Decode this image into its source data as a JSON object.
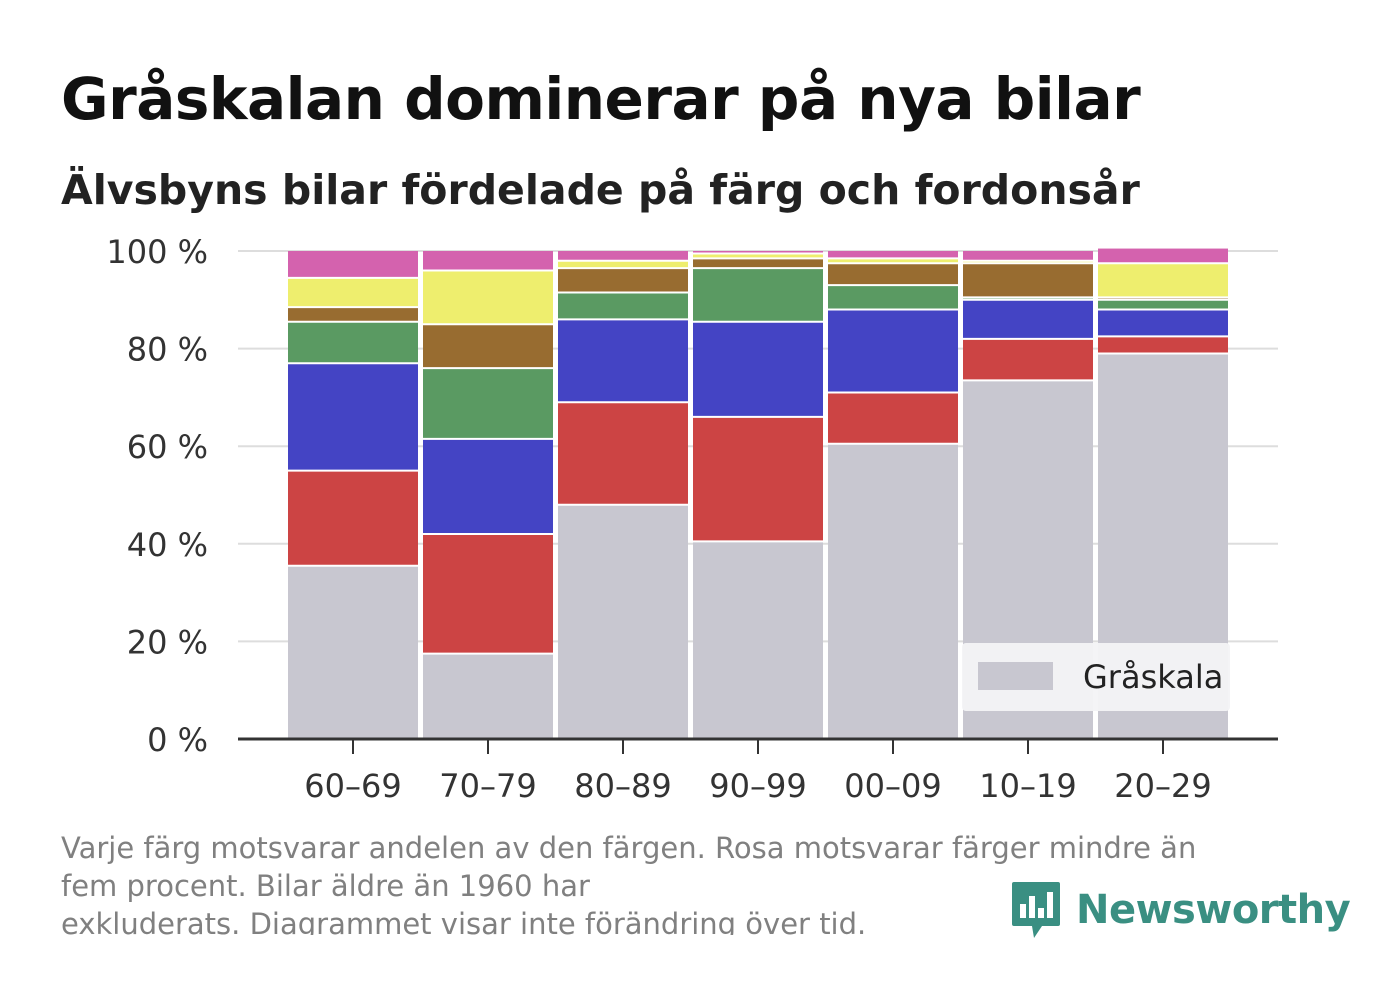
{
  "title": "Gråskalan dominerar på nya bilar",
  "subtitle": "Älvsbyns bilar fördelade på färg och fordonsår",
  "footnote": {
    "line1": "Varje färg motsvarar andelen av den färgen. Rosa motsvarar färger mindre än",
    "line2": "fem procent. Bilar äldre än 1960 har",
    "line3": "exkluderats. Diagrammet visar inte förändring över tid."
  },
  "brand": {
    "name": "Newsworthy",
    "icon": "newsworthy-logo-icon",
    "color": "#3a8f82"
  },
  "legend": {
    "label": "Gråskala",
    "color": "#c8c7d0",
    "placement": "bottom-right"
  },
  "chart_data": {
    "type": "bar",
    "stacked": true,
    "categories": [
      "60–69",
      "70–79",
      "80–89",
      "90–99",
      "00–09",
      "10–19",
      "20–29"
    ],
    "ylim": [
      0,
      100
    ],
    "yticks": [
      0,
      20,
      40,
      60,
      80,
      100
    ],
    "ytick_labels": [
      "0 %",
      "20 %",
      "40 %",
      "60 %",
      "80 %",
      "100 %"
    ],
    "grid": true,
    "series": [
      {
        "name": "Gråskala",
        "color": "#c8c7d0",
        "values": [
          35.5,
          17.5,
          48,
          40.5,
          60.5,
          73.5,
          79
        ]
      },
      {
        "color": "#cc4444",
        "values": [
          19.5,
          24.5,
          21,
          25.5,
          10.5,
          8.5,
          3.5
        ]
      },
      {
        "color": "#4444c4",
        "values": [
          22,
          19.5,
          17,
          19.5,
          17,
          8,
          5.5
        ]
      },
      {
        "color": "#5a9a62",
        "values": [
          8.5,
          14.5,
          5.5,
          11,
          5,
          0.5,
          2
        ]
      },
      {
        "color": "#986c30",
        "values": [
          3,
          9,
          5,
          2,
          4.5,
          7,
          0.5
        ]
      },
      {
        "color": "#eeee6e",
        "values": [
          6,
          11,
          1.5,
          1,
          1,
          0.5,
          7
        ]
      },
      {
        "color": "#d462ae",
        "values": [
          5.5,
          4,
          2,
          0.5,
          1.5,
          2,
          3
        ]
      }
    ]
  }
}
